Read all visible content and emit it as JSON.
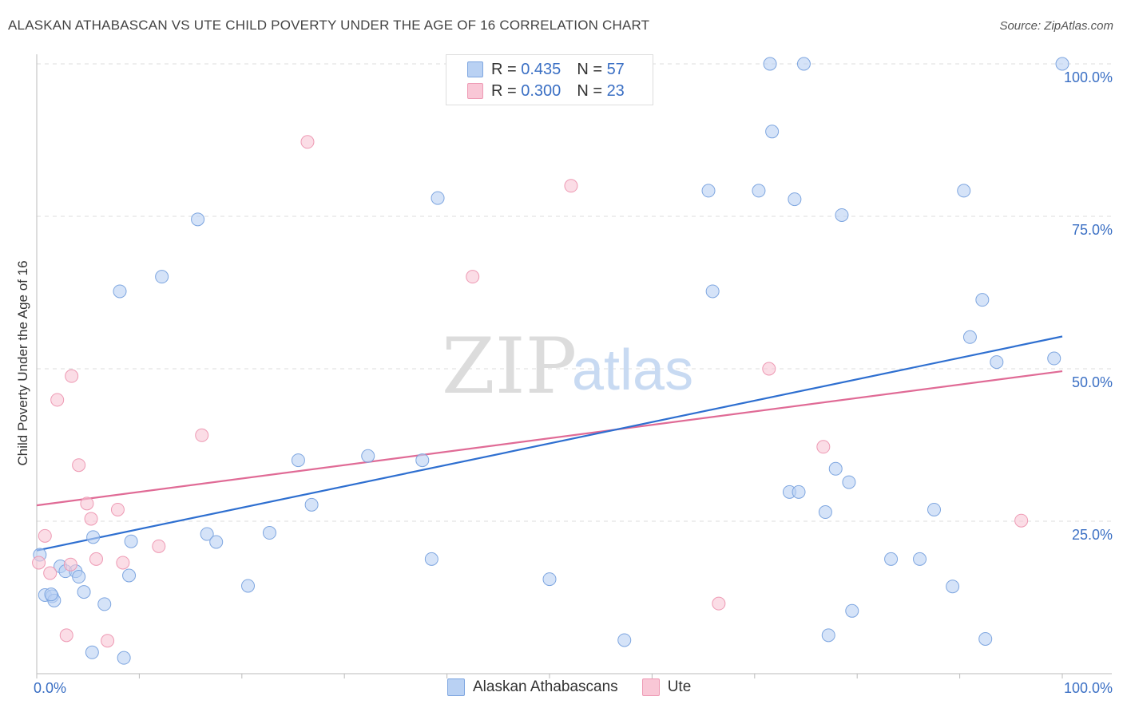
{
  "title": "ALASKAN ATHABASCAN VS UTE CHILD POVERTY UNDER THE AGE OF 16 CORRELATION CHART",
  "source": "Source: ZipAtlas.com",
  "watermark": {
    "zip": "ZIP",
    "atlas": "atlas"
  },
  "colors": {
    "blue_fill": "#b9d1f3",
    "blue_stroke": "#7ea6e0",
    "blue_line": "#2e6fd0",
    "pink_fill": "#f9c7d6",
    "pink_stroke": "#ee9ab4",
    "pink_line": "#e06b96",
    "tick_label": "#3a6fc4"
  },
  "legend": {
    "rows": [
      {
        "r_label": "R =",
        "r_value": "0.435",
        "n_label": "N =",
        "n_value": "57"
      },
      {
        "r_label": "R =",
        "r_value": "0.300",
        "n_label": "N =",
        "n_value": "23"
      }
    ]
  },
  "bottom_legend": [
    "Alaskan Athabascans",
    "Ute"
  ],
  "chart_data": {
    "type": "scatter",
    "title": "ALASKAN ATHABASCAN VS UTE CHILD POVERTY UNDER THE AGE OF 16 CORRELATION CHART",
    "xlabel": "",
    "ylabel": "Child Poverty Under the Age of 16",
    "xlim": [
      0,
      100
    ],
    "ylim": [
      0,
      100
    ],
    "x_tick_labels": [
      "0.0%",
      "100.0%"
    ],
    "y_tick_labels": [
      "25.0%",
      "50.0%",
      "75.0%",
      "100.0%"
    ],
    "y_ticks": [
      25,
      50,
      75,
      100
    ],
    "grid": true,
    "legend_position": "top-center",
    "series": [
      {
        "name": "Alaskan Athabascans",
        "r": 0.435,
        "n": 57,
        "trend": [
          [
            0,
            20.2
          ],
          [
            100,
            55.3
          ]
        ],
        "points": [
          [
            0.3,
            19.5
          ],
          [
            0.8,
            12.9
          ],
          [
            1.5,
            12.7
          ],
          [
            1.7,
            12.0
          ],
          [
            2.3,
            17.6
          ],
          [
            2.8,
            16.8
          ],
          [
            3.8,
            16.8
          ],
          [
            4.1,
            15.9
          ],
          [
            4.6,
            13.4
          ],
          [
            5.5,
            22.4
          ],
          [
            6.6,
            11.4
          ],
          [
            5.4,
            3.5
          ],
          [
            8.1,
            62.7
          ],
          [
            8.5,
            2.6
          ],
          [
            9.0,
            16.1
          ],
          [
            9.2,
            21.7
          ],
          [
            12.2,
            65.1
          ],
          [
            15.7,
            74.5
          ],
          [
            16.6,
            22.9
          ],
          [
            17.5,
            21.6
          ],
          [
            20.6,
            14.4
          ],
          [
            22.7,
            23.1
          ],
          [
            25.5,
            35.0
          ],
          [
            26.8,
            27.7
          ],
          [
            32.3,
            35.7
          ],
          [
            37.6,
            35.0
          ],
          [
            38.5,
            18.8
          ],
          [
            39.1,
            78.0
          ],
          [
            50.0,
            15.5
          ],
          [
            57.3,
            5.5
          ],
          [
            65.5,
            79.2
          ],
          [
            65.9,
            62.7
          ],
          [
            70.4,
            79.2
          ],
          [
            71.5,
            100.0
          ],
          [
            71.7,
            88.9
          ],
          [
            73.4,
            29.8
          ],
          [
            74.3,
            29.8
          ],
          [
            73.9,
            77.8
          ],
          [
            74.8,
            100.0
          ],
          [
            76.9,
            26.5
          ],
          [
            77.2,
            6.3
          ],
          [
            77.9,
            33.6
          ],
          [
            78.5,
            75.2
          ],
          [
            79.2,
            31.4
          ],
          [
            79.5,
            10.3
          ],
          [
            83.3,
            18.8
          ],
          [
            86.1,
            18.8
          ],
          [
            87.5,
            26.9
          ],
          [
            89.3,
            14.3
          ],
          [
            90.4,
            79.2
          ],
          [
            91.0,
            55.2
          ],
          [
            92.2,
            61.3
          ],
          [
            92.5,
            5.7
          ],
          [
            93.6,
            51.1
          ],
          [
            99.2,
            51.7
          ],
          [
            100.0,
            100.0
          ],
          [
            1.4,
            13.0
          ]
        ]
      },
      {
        "name": "Ute",
        "r": 0.3,
        "n": 23,
        "trend": [
          [
            0,
            27.6
          ],
          [
            100,
            49.6
          ]
        ],
        "points": [
          [
            0.2,
            18.2
          ],
          [
            0.8,
            22.6
          ],
          [
            1.3,
            16.5
          ],
          [
            2.0,
            44.9
          ],
          [
            3.3,
            17.9
          ],
          [
            2.9,
            6.3
          ],
          [
            3.4,
            48.8
          ],
          [
            4.1,
            34.2
          ],
          [
            4.9,
            27.9
          ],
          [
            5.3,
            25.4
          ],
          [
            5.8,
            18.8
          ],
          [
            6.9,
            5.4
          ],
          [
            7.9,
            26.9
          ],
          [
            8.4,
            18.2
          ],
          [
            11.9,
            20.9
          ],
          [
            16.1,
            39.1
          ],
          [
            26.4,
            87.2
          ],
          [
            42.5,
            65.1
          ],
          [
            52.1,
            80.0
          ],
          [
            66.5,
            11.5
          ],
          [
            71.4,
            50.0
          ],
          [
            76.7,
            37.2
          ],
          [
            96.0,
            25.1
          ]
        ]
      }
    ]
  }
}
